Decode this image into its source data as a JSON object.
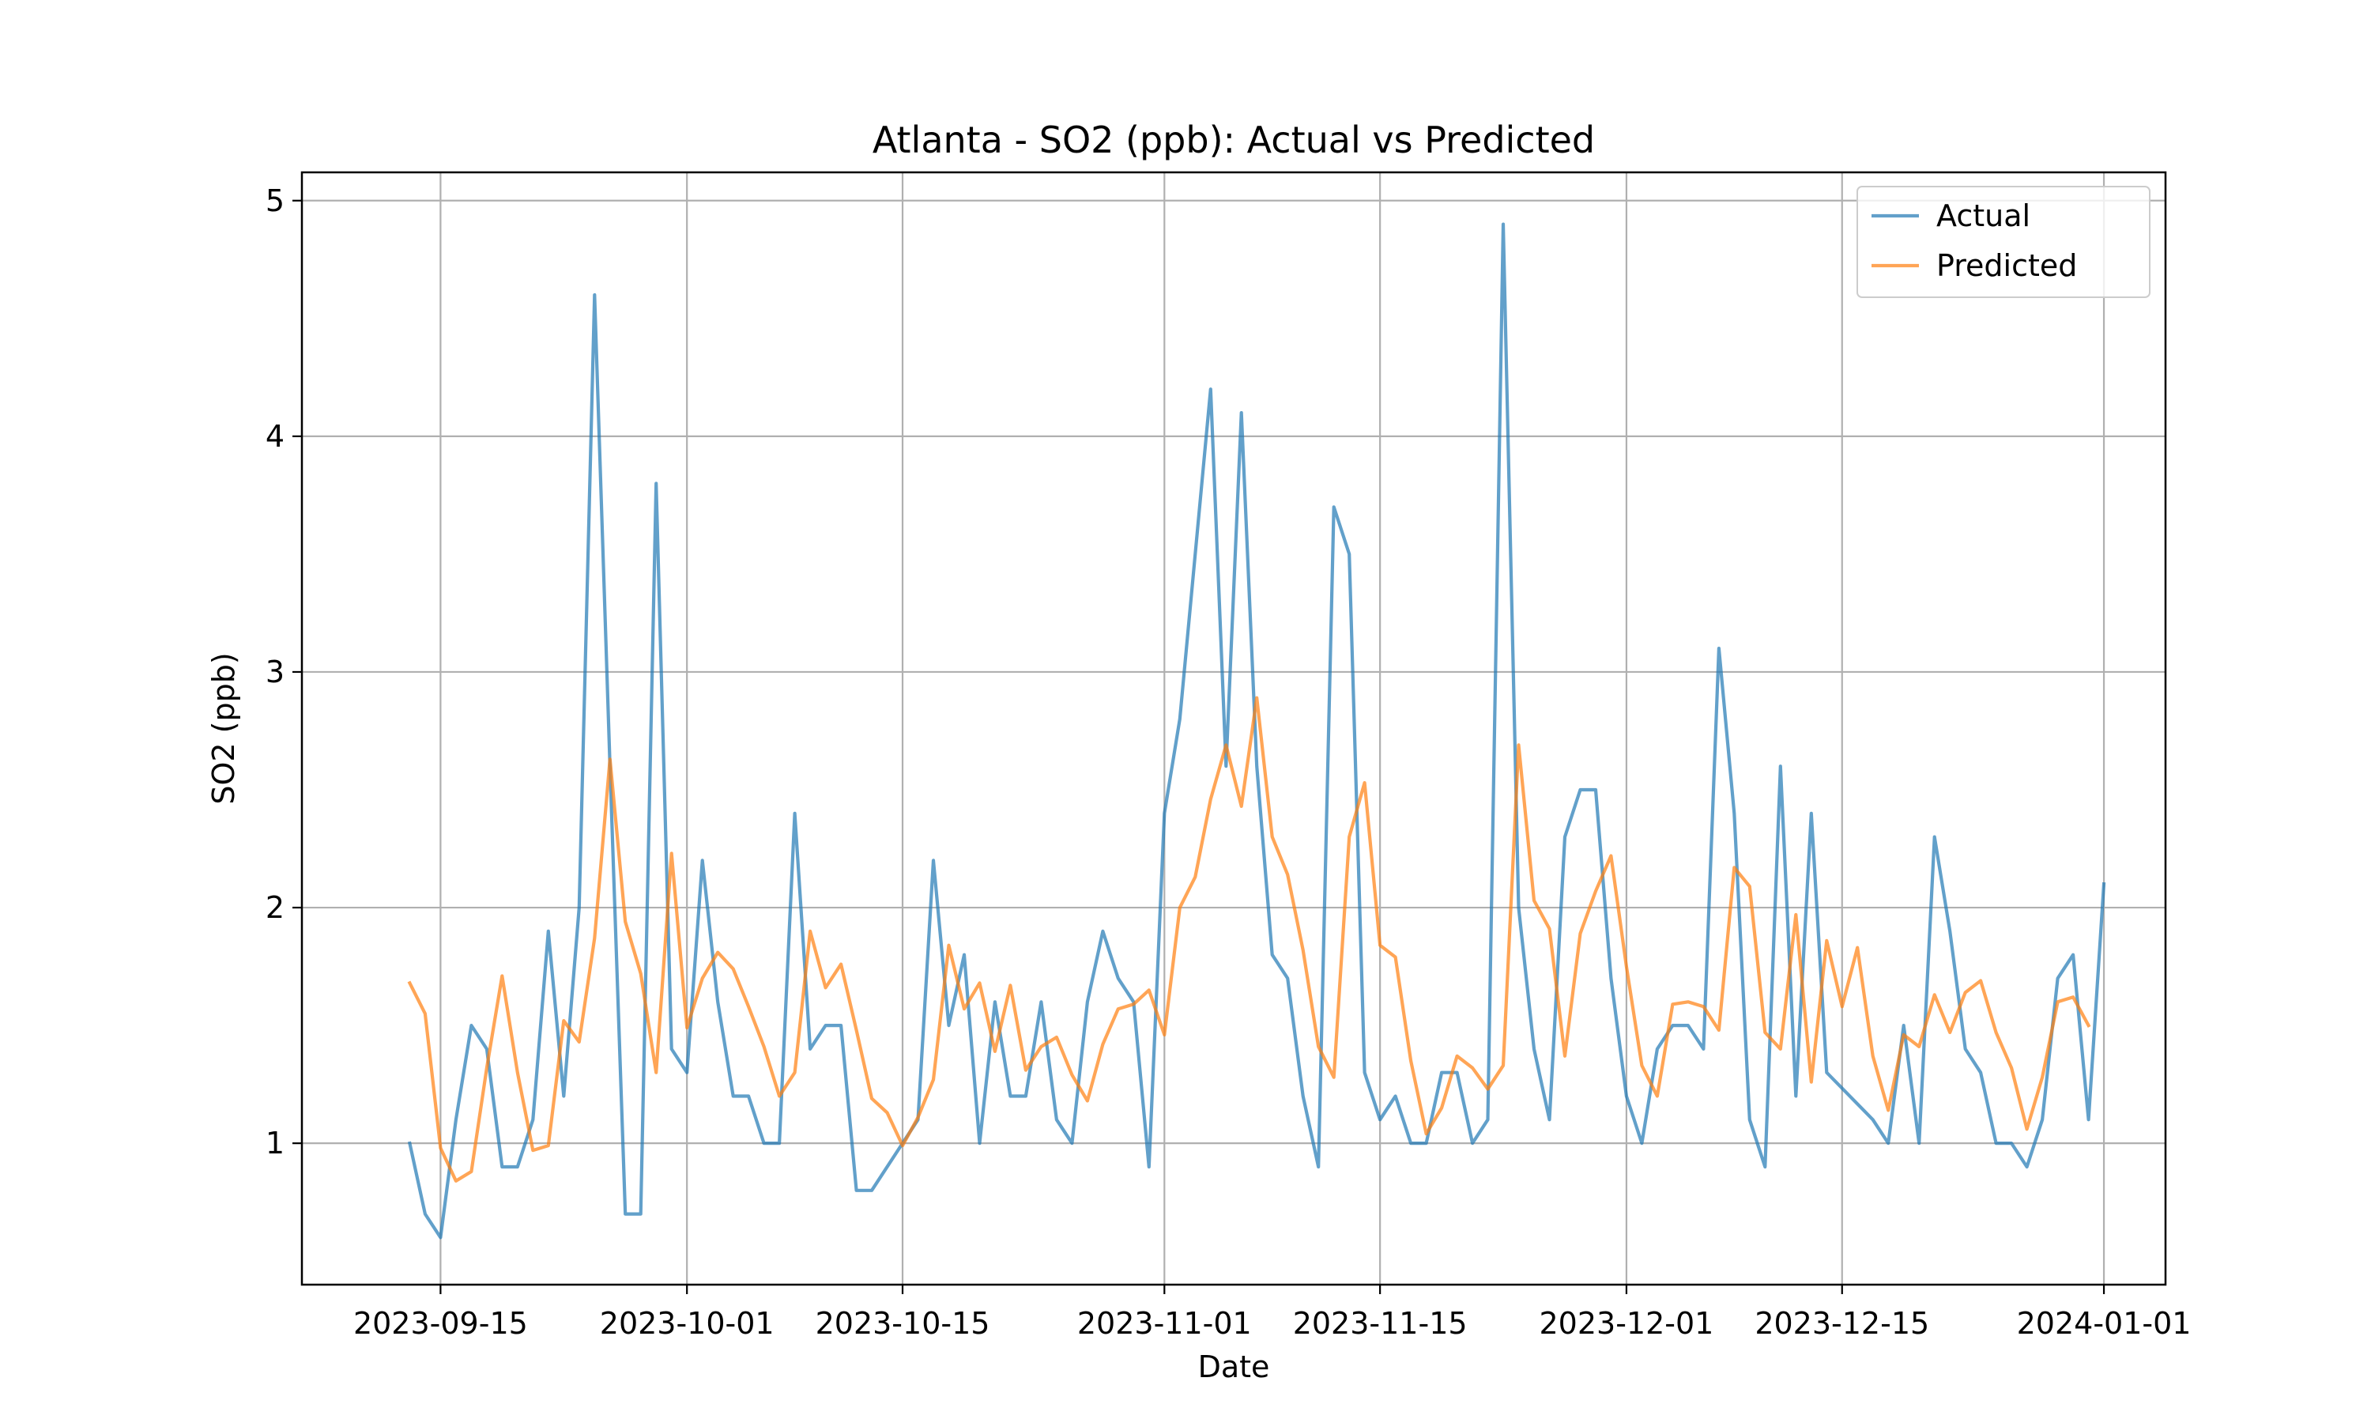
{
  "chart_data": {
    "type": "line",
    "title": "Atlanta - SO2 (ppb): Actual vs Predicted",
    "xlabel": "Date",
    "ylabel": "SO2 (ppb)",
    "xlim": [
      "2023-09-06",
      "2024-01-05"
    ],
    "ylim": [
      0.4,
      5.12
    ],
    "grid": true,
    "legend_position": "top-right",
    "x_ticks": [
      "2023-09-15",
      "2023-10-01",
      "2023-10-15",
      "2023-11-01",
      "2023-11-15",
      "2023-12-01",
      "2023-12-15",
      "2024-01-01"
    ],
    "y_ticks": [
      1,
      2,
      3,
      4,
      5
    ],
    "series": [
      {
        "name": "Actual",
        "color": "#1f77b4",
        "points": [
          [
            "2023-09-13",
            1.0
          ],
          [
            "2023-09-14",
            0.7
          ],
          [
            "2023-09-15",
            0.6
          ],
          [
            "2023-09-16",
            1.1
          ],
          [
            "2023-09-17",
            1.5
          ],
          [
            "2023-09-18",
            1.4
          ],
          [
            "2023-09-19",
            0.9
          ],
          [
            "2023-09-20",
            0.9
          ],
          [
            "2023-09-21",
            1.1
          ],
          [
            "2023-09-22",
            1.9
          ],
          [
            "2023-09-23",
            1.2
          ],
          [
            "2023-09-24",
            2.0
          ],
          [
            "2023-09-25",
            4.6
          ],
          [
            "2023-09-26",
            2.6
          ],
          [
            "2023-09-27",
            0.7
          ],
          [
            "2023-09-28",
            0.7
          ],
          [
            "2023-09-29",
            3.8
          ],
          [
            "2023-09-30",
            1.4
          ],
          [
            "2023-10-01",
            1.3
          ],
          [
            "2023-10-02",
            2.2
          ],
          [
            "2023-10-03",
            1.6
          ],
          [
            "2023-10-04",
            1.2
          ],
          [
            "2023-10-05",
            1.2
          ],
          [
            "2023-10-06",
            1.0
          ],
          [
            "2023-10-07",
            1.0
          ],
          [
            "2023-10-08",
            2.4
          ],
          [
            "2023-10-09",
            1.4
          ],
          [
            "2023-10-10",
            1.5
          ],
          [
            "2023-10-11",
            1.5
          ],
          [
            "2023-10-12",
            0.8
          ],
          [
            "2023-10-13",
            0.8
          ],
          [
            "2023-10-15",
            1.0
          ],
          [
            "2023-10-16",
            1.1
          ],
          [
            "2023-10-17",
            2.2
          ],
          [
            "2023-10-18",
            1.5
          ],
          [
            "2023-10-19",
            1.8
          ],
          [
            "2023-10-20",
            1.0
          ],
          [
            "2023-10-21",
            1.6
          ],
          [
            "2023-10-22",
            1.2
          ],
          [
            "2023-10-23",
            1.2
          ],
          [
            "2023-10-24",
            1.6
          ],
          [
            "2023-10-25",
            1.1
          ],
          [
            "2023-10-26",
            1.0
          ],
          [
            "2023-10-27",
            1.6
          ],
          [
            "2023-10-28",
            1.9
          ],
          [
            "2023-10-29",
            1.7
          ],
          [
            "2023-10-30",
            1.6
          ],
          [
            "2023-10-31",
            0.9
          ],
          [
            "2023-11-01",
            2.4
          ],
          [
            "2023-11-02",
            2.8
          ],
          [
            "2023-11-04",
            4.2
          ],
          [
            "2023-11-05",
            2.6
          ],
          [
            "2023-11-06",
            4.1
          ],
          [
            "2023-11-07",
            2.6
          ],
          [
            "2023-11-08",
            1.8
          ],
          [
            "2023-11-09",
            1.7
          ],
          [
            "2023-11-10",
            1.2
          ],
          [
            "2023-11-11",
            0.9
          ],
          [
            "2023-11-12",
            3.7
          ],
          [
            "2023-11-13",
            3.5
          ],
          [
            "2023-11-14",
            1.3
          ],
          [
            "2023-11-15",
            1.1
          ],
          [
            "2023-11-16",
            1.2
          ],
          [
            "2023-11-17",
            1.0
          ],
          [
            "2023-11-18",
            1.0
          ],
          [
            "2023-11-19",
            1.3
          ],
          [
            "2023-11-20",
            1.3
          ],
          [
            "2023-11-21",
            1.0
          ],
          [
            "2023-11-22",
            1.1
          ],
          [
            "2023-11-23",
            4.9
          ],
          [
            "2023-11-24",
            2.0
          ],
          [
            "2023-11-25",
            1.4
          ],
          [
            "2023-11-26",
            1.1
          ],
          [
            "2023-11-27",
            2.3
          ],
          [
            "2023-11-28",
            2.5
          ],
          [
            "2023-11-29",
            2.5
          ],
          [
            "2023-11-30",
            1.7
          ],
          [
            "2023-12-01",
            1.2
          ],
          [
            "2023-12-02",
            1.0
          ],
          [
            "2023-12-03",
            1.4
          ],
          [
            "2023-12-04",
            1.5
          ],
          [
            "2023-12-05",
            1.5
          ],
          [
            "2023-12-06",
            1.4
          ],
          [
            "2023-12-07",
            3.1
          ],
          [
            "2023-12-08",
            2.4
          ],
          [
            "2023-12-09",
            1.1
          ],
          [
            "2023-12-10",
            0.9
          ],
          [
            "2023-12-11",
            2.6
          ],
          [
            "2023-12-12",
            1.2
          ],
          [
            "2023-12-13",
            2.4
          ],
          [
            "2023-12-14",
            1.3
          ],
          [
            "2023-12-17",
            1.1
          ],
          [
            "2023-12-18",
            1.0
          ],
          [
            "2023-12-19",
            1.5
          ],
          [
            "2023-12-20",
            1.0
          ],
          [
            "2023-12-21",
            2.3
          ],
          [
            "2023-12-22",
            1.9
          ],
          [
            "2023-12-23",
            1.4
          ],
          [
            "2023-12-24",
            1.3
          ],
          [
            "2023-12-25",
            1.0
          ],
          [
            "2023-12-26",
            1.0
          ],
          [
            "2023-12-27",
            0.9
          ],
          [
            "2023-12-28",
            1.1
          ],
          [
            "2023-12-29",
            1.7
          ],
          [
            "2023-12-30",
            1.8
          ],
          [
            "2023-12-31",
            1.1
          ],
          [
            "2024-01-01",
            2.1
          ]
        ]
      },
      {
        "name": "Predicted",
        "color": "#ff7f0e",
        "points": [
          [
            "2023-09-13",
            1.68
          ],
          [
            "2023-09-14",
            1.55
          ],
          [
            "2023-09-15",
            0.98
          ],
          [
            "2023-09-16",
            0.84
          ],
          [
            "2023-09-17",
            0.88
          ],
          [
            "2023-09-18",
            1.32
          ],
          [
            "2023-09-19",
            1.71
          ],
          [
            "2023-09-20",
            1.3
          ],
          [
            "2023-09-21",
            0.97
          ],
          [
            "2023-09-22",
            0.99
          ],
          [
            "2023-09-23",
            1.52
          ],
          [
            "2023-09-24",
            1.43
          ],
          [
            "2023-09-25",
            1.87
          ],
          [
            "2023-09-26",
            2.63
          ],
          [
            "2023-09-27",
            1.94
          ],
          [
            "2023-09-28",
            1.72
          ],
          [
            "2023-09-29",
            1.3
          ],
          [
            "2023-09-30",
            2.23
          ],
          [
            "2023-10-01",
            1.49
          ],
          [
            "2023-10-02",
            1.7
          ],
          [
            "2023-10-03",
            1.81
          ],
          [
            "2023-10-04",
            1.74
          ],
          [
            "2023-10-05",
            1.58
          ],
          [
            "2023-10-06",
            1.41
          ],
          [
            "2023-10-07",
            1.2
          ],
          [
            "2023-10-08",
            1.3
          ],
          [
            "2023-10-09",
            1.9
          ],
          [
            "2023-10-10",
            1.66
          ],
          [
            "2023-10-11",
            1.76
          ],
          [
            "2023-10-12",
            1.48
          ],
          [
            "2023-10-13",
            1.19
          ],
          [
            "2023-10-14",
            1.13
          ],
          [
            "2023-10-15",
            0.99
          ],
          [
            "2023-10-16",
            1.11
          ],
          [
            "2023-10-17",
            1.27
          ],
          [
            "2023-10-18",
            1.84
          ],
          [
            "2023-10-19",
            1.57
          ],
          [
            "2023-10-20",
            1.68
          ],
          [
            "2023-10-21",
            1.39
          ],
          [
            "2023-10-22",
            1.67
          ],
          [
            "2023-10-23",
            1.31
          ],
          [
            "2023-10-24",
            1.41
          ],
          [
            "2023-10-25",
            1.45
          ],
          [
            "2023-10-26",
            1.29
          ],
          [
            "2023-10-27",
            1.18
          ],
          [
            "2023-10-28",
            1.42
          ],
          [
            "2023-10-29",
            1.57
          ],
          [
            "2023-10-30",
            1.59
          ],
          [
            "2023-10-31",
            1.65
          ],
          [
            "2023-11-01",
            1.46
          ],
          [
            "2023-11-02",
            2.0
          ],
          [
            "2023-11-03",
            2.13
          ],
          [
            "2023-11-04",
            2.46
          ],
          [
            "2023-11-05",
            2.69
          ],
          [
            "2023-11-06",
            2.43
          ],
          [
            "2023-11-07",
            2.89
          ],
          [
            "2023-11-08",
            2.3
          ],
          [
            "2023-11-09",
            2.14
          ],
          [
            "2023-11-10",
            1.82
          ],
          [
            "2023-11-11",
            1.41
          ],
          [
            "2023-11-12",
            1.28
          ],
          [
            "2023-11-13",
            2.3
          ],
          [
            "2023-11-14",
            2.53
          ],
          [
            "2023-11-15",
            1.84
          ],
          [
            "2023-11-16",
            1.79
          ],
          [
            "2023-11-17",
            1.35
          ],
          [
            "2023-11-18",
            1.04
          ],
          [
            "2023-11-19",
            1.15
          ],
          [
            "2023-11-20",
            1.37
          ],
          [
            "2023-11-21",
            1.32
          ],
          [
            "2023-11-22",
            1.23
          ],
          [
            "2023-11-23",
            1.33
          ],
          [
            "2023-11-24",
            2.69
          ],
          [
            "2023-11-25",
            2.03
          ],
          [
            "2023-11-26",
            1.91
          ],
          [
            "2023-11-27",
            1.37
          ],
          [
            "2023-11-28",
            1.89
          ],
          [
            "2023-11-29",
            2.07
          ],
          [
            "2023-11-30",
            2.22
          ],
          [
            "2023-12-01",
            1.75
          ],
          [
            "2023-12-02",
            1.33
          ],
          [
            "2023-12-03",
            1.2
          ],
          [
            "2023-12-04",
            1.59
          ],
          [
            "2023-12-05",
            1.6
          ],
          [
            "2023-12-06",
            1.58
          ],
          [
            "2023-12-07",
            1.48
          ],
          [
            "2023-12-08",
            2.17
          ],
          [
            "2023-12-09",
            2.09
          ],
          [
            "2023-12-10",
            1.47
          ],
          [
            "2023-12-11",
            1.4
          ],
          [
            "2023-12-12",
            1.97
          ],
          [
            "2023-12-13",
            1.26
          ],
          [
            "2023-12-14",
            1.86
          ],
          [
            "2023-12-15",
            1.58
          ],
          [
            "2023-12-16",
            1.83
          ],
          [
            "2023-12-17",
            1.37
          ],
          [
            "2023-12-18",
            1.14
          ],
          [
            "2023-12-19",
            1.46
          ],
          [
            "2023-12-20",
            1.41
          ],
          [
            "2023-12-21",
            1.63
          ],
          [
            "2023-12-22",
            1.47
          ],
          [
            "2023-12-23",
            1.64
          ],
          [
            "2023-12-24",
            1.69
          ],
          [
            "2023-12-25",
            1.47
          ],
          [
            "2023-12-26",
            1.32
          ],
          [
            "2023-12-27",
            1.06
          ],
          [
            "2023-12-28",
            1.28
          ],
          [
            "2023-12-29",
            1.6
          ],
          [
            "2023-12-30",
            1.62
          ],
          [
            "2023-12-31",
            1.5
          ]
        ]
      }
    ]
  }
}
